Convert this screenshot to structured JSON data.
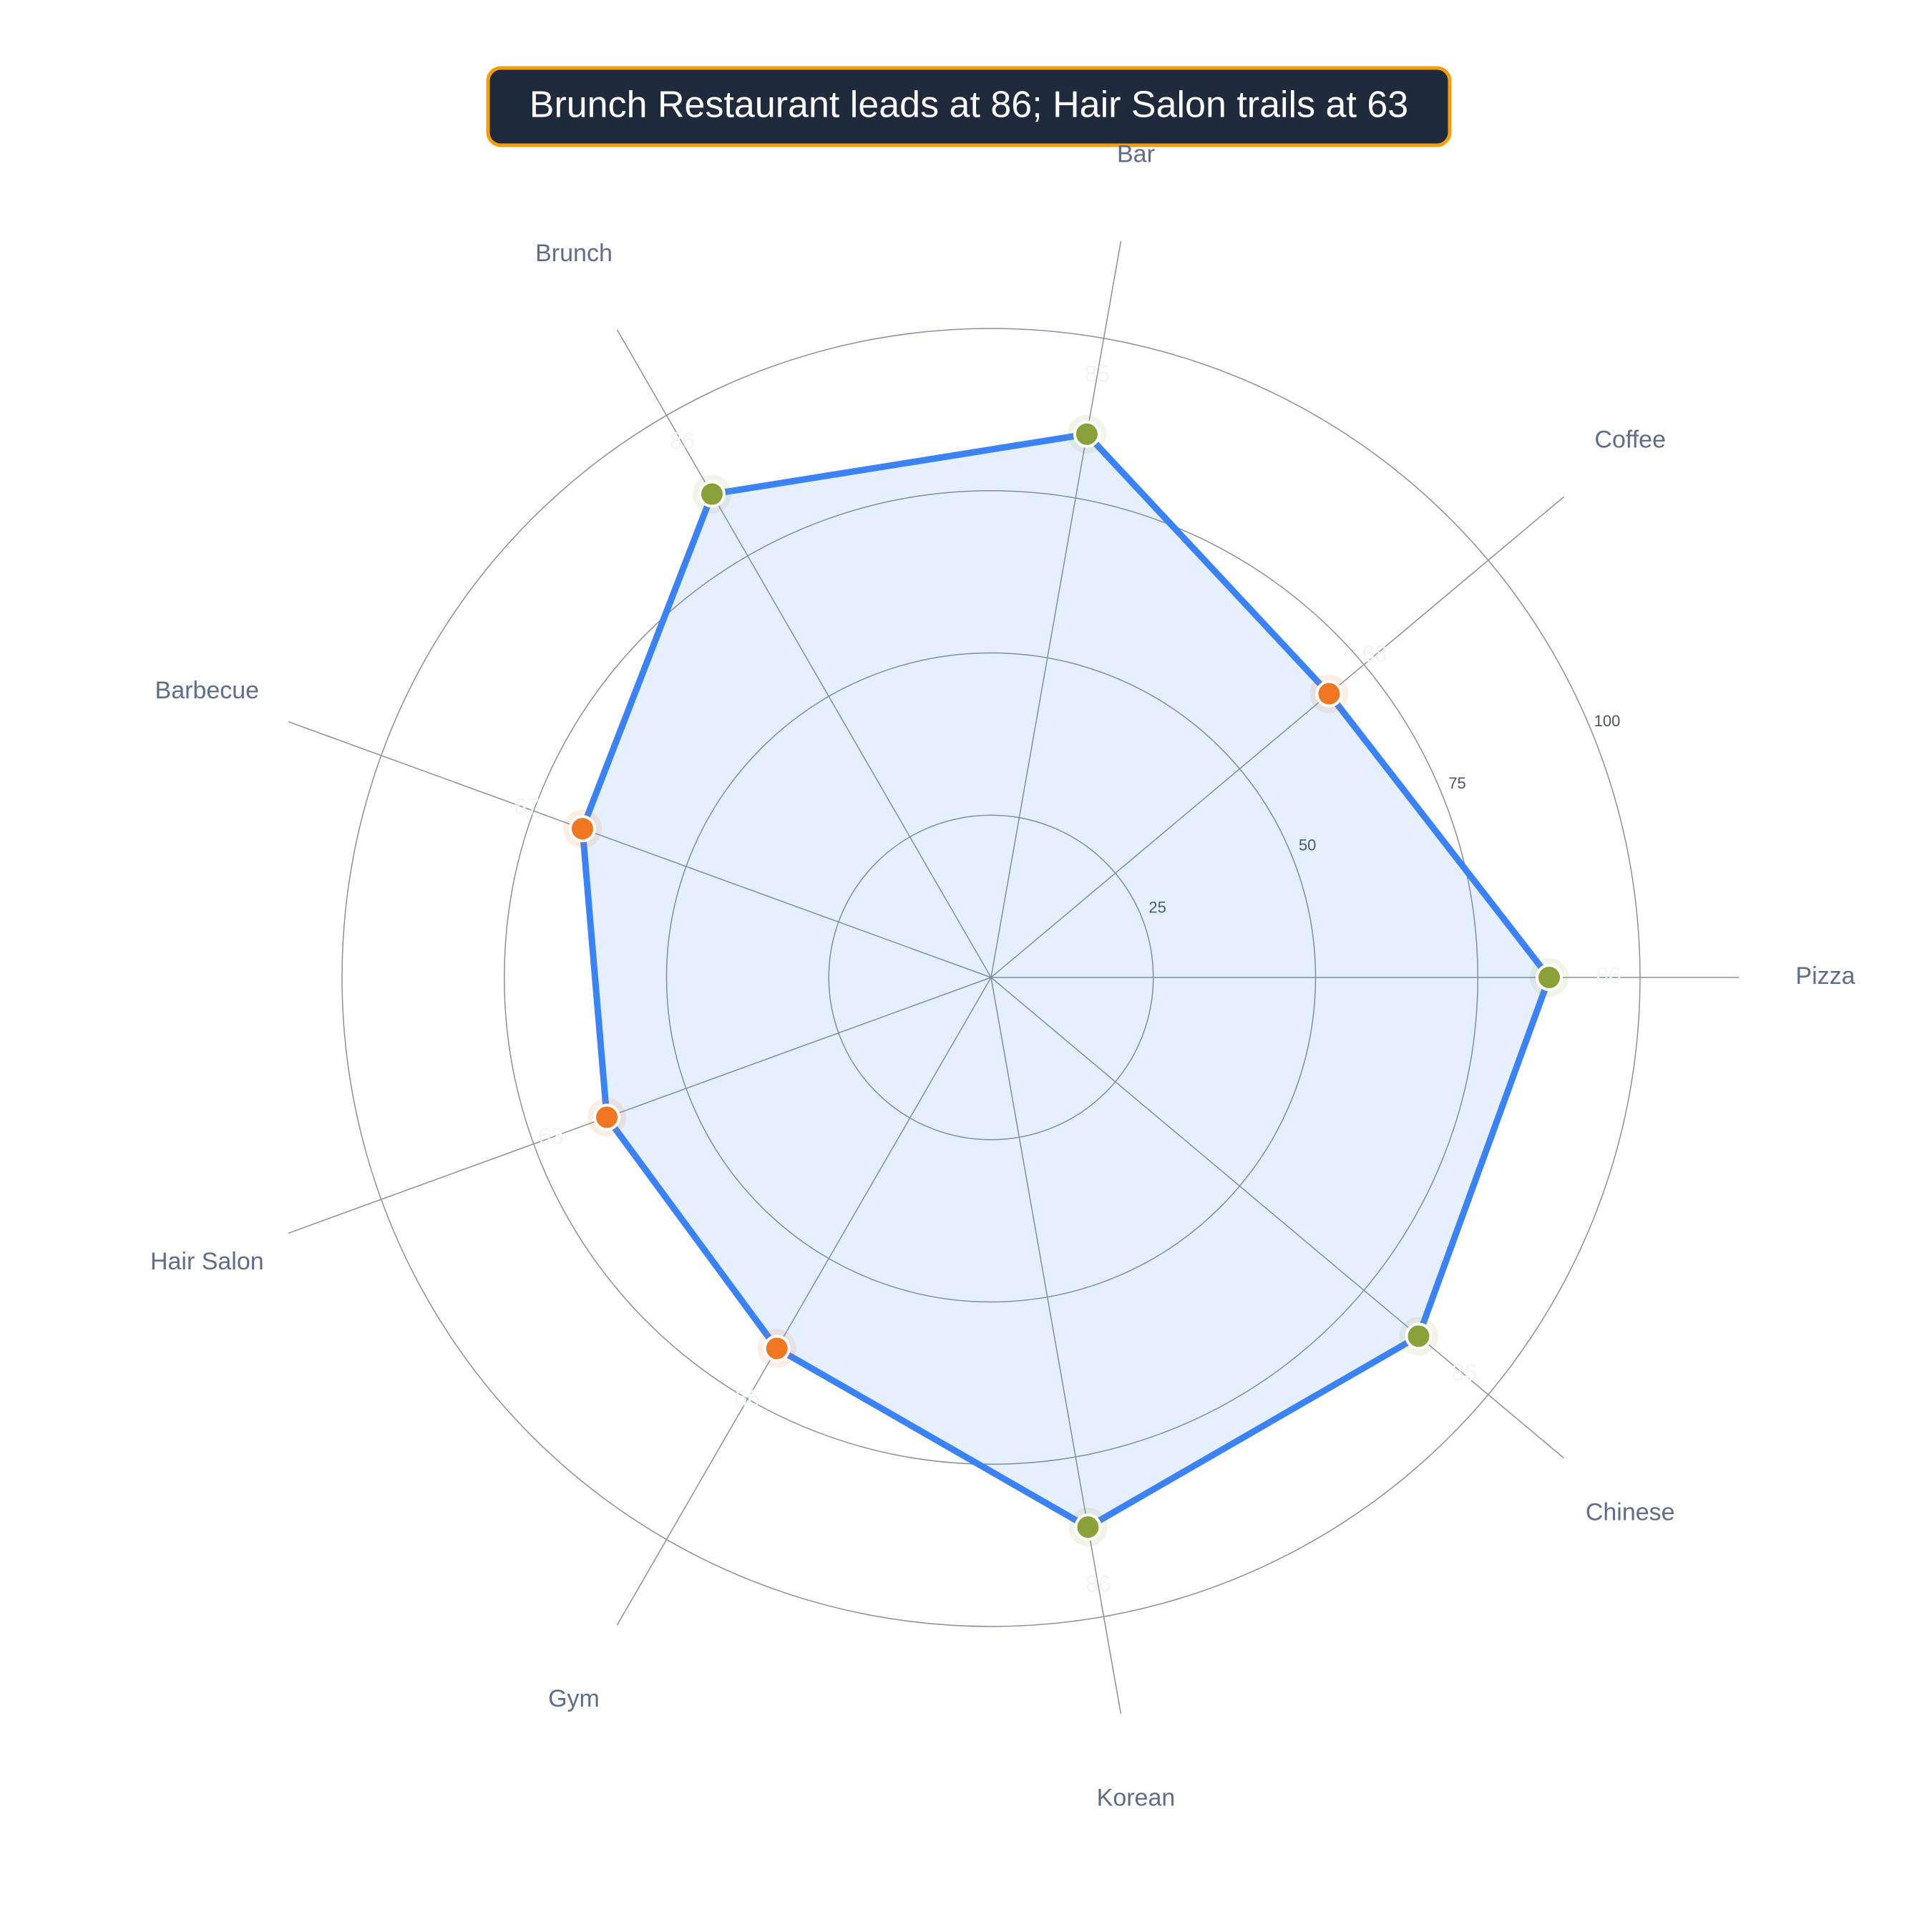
{
  "chart_data": {
    "type": "radar",
    "title": "Brunch Restaurant leads at 86; Hair Salon trails at 63",
    "categories": [
      "Pizza",
      "Coffee",
      "Bar",
      "Brunch",
      "Barbecue",
      "Hair Salon",
      "Gym",
      "Korean",
      "Chinese"
    ],
    "series": [
      {
        "color": "#3b82f6",
        "values": [
          86,
          68,
          85,
          86,
          67,
          63,
          66,
          86,
          86
        ],
        "marker_colors": [
          "#8aa13a",
          "#f07722",
          "#8aa13a",
          "#8aa13a",
          "#f07722",
          "#f07722",
          "#f07722",
          "#8aa13a",
          "#8aa13a"
        ]
      }
    ],
    "rlim": [
      0,
      100
    ],
    "rticks": [
      25,
      50,
      75,
      100
    ],
    "grid": true
  }
}
